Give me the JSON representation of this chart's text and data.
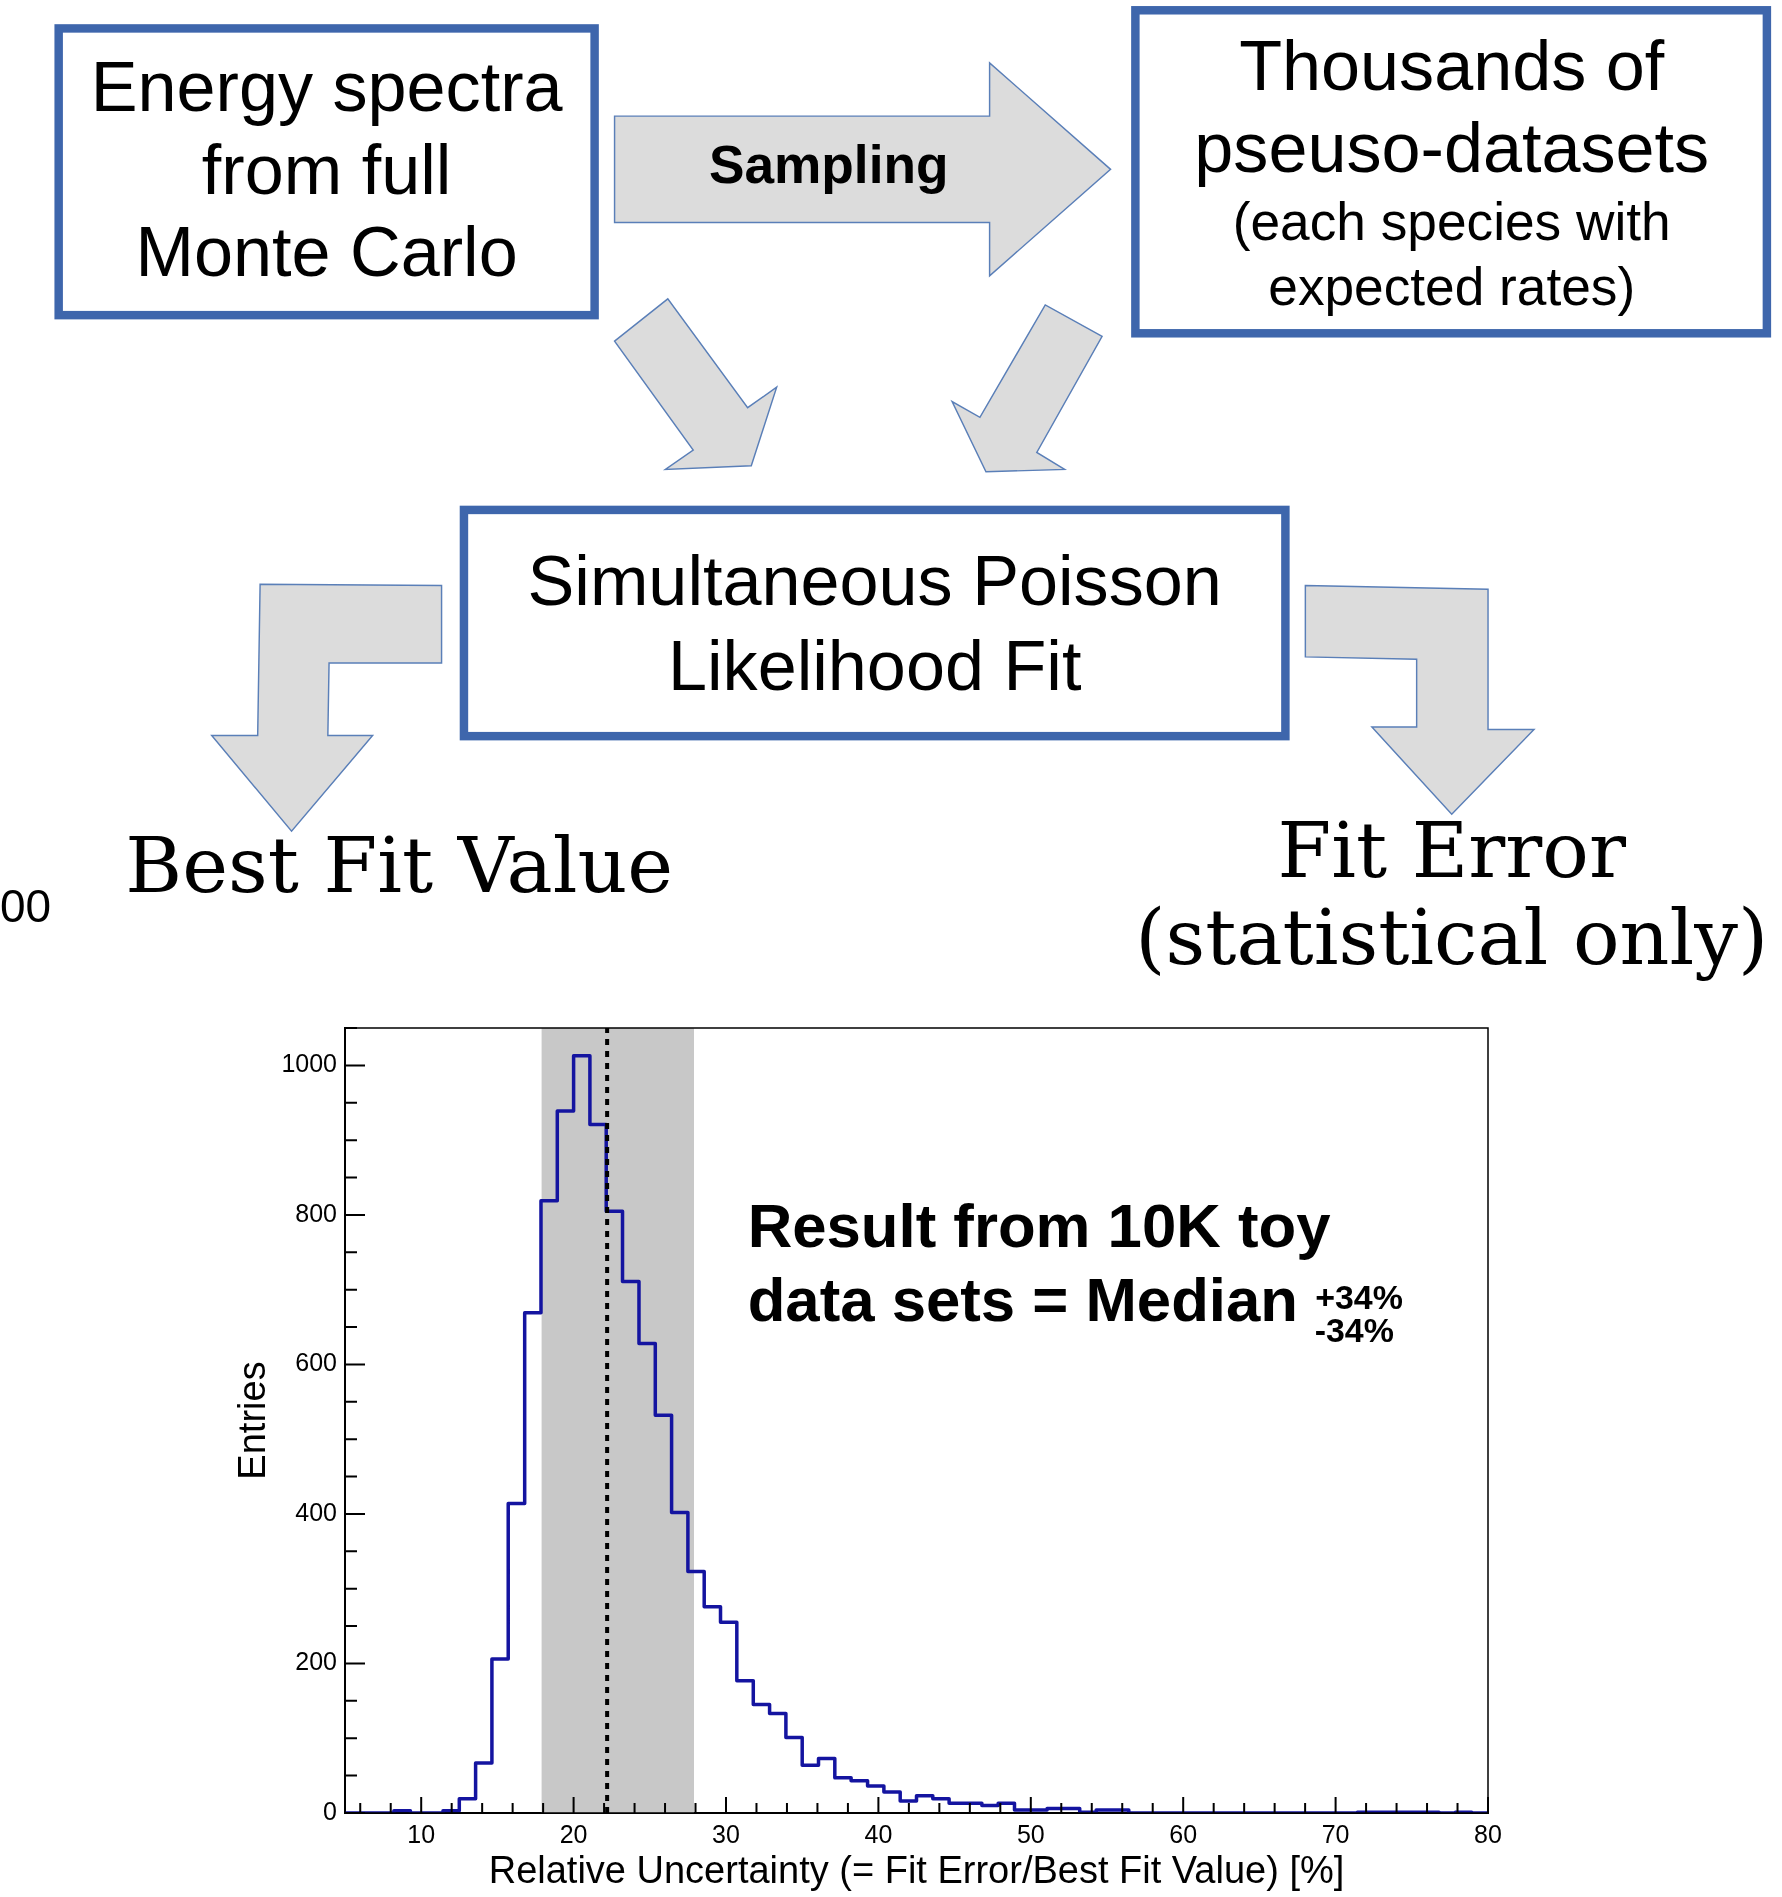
{
  "chart_data": {
    "type": "histogram",
    "xlabel": "Relative Uncertainty (= Fit Error/Best Fit Value) [%]",
    "ylabel": "Entries",
    "color": "#1414a0",
    "bins": [
      5,
      6.07,
      7.14,
      8.21,
      9.29,
      10.36,
      11.43,
      12.5,
      13.57,
      14.64,
      15.71,
      16.79,
      17.86,
      18.93,
      20,
      21.07,
      22.14,
      23.21,
      24.29,
      25.36,
      26.43,
      27.5,
      28.57,
      29.64,
      30.71,
      31.79,
      32.86,
      33.93,
      35,
      36.07,
      37.14,
      38.21,
      39.29,
      40.36,
      41.43,
      42.5,
      43.57,
      44.64,
      45.71,
      46.79,
      47.86,
      48.93,
      50,
      51.07,
      52.14,
      53.21,
      54.29,
      55.36,
      56.43,
      57.5,
      58.57,
      59.64,
      60.71,
      61.79,
      62.86,
      63.93,
      65,
      66.07,
      67.14,
      68.21,
      69.29,
      70.36,
      71.43,
      72.5,
      73.57,
      74.64,
      75.71,
      76.79,
      77.86,
      78.93,
      80
    ],
    "values": [
      0,
      0,
      0,
      3,
      0,
      0,
      3,
      19,
      67,
      206,
      414,
      669,
      819,
      939,
      1013,
      921,
      805,
      711,
      628,
      532,
      402,
      323,
      276,
      255,
      177,
      145,
      133,
      101,
      64,
      73,
      47,
      43,
      36,
      28,
      16,
      23,
      19,
      13,
      13,
      10,
      13,
      4,
      4,
      6,
      6,
      1,
      4,
      4,
      0,
      0,
      0,
      0,
      0,
      0,
      0,
      0,
      0,
      0,
      0,
      0,
      0,
      0,
      1,
      1,
      1,
      1,
      1,
      0,
      1,
      0
    ],
    "xlim": [
      5,
      80
    ],
    "ylim": [
      0,
      1050
    ],
    "xticks": [
      {
        "value": 6,
        "label": null
      },
      {
        "value": 8,
        "label": null
      },
      10,
      {
        "value": 12,
        "label": null
      },
      {
        "value": 14,
        "label": null
      },
      {
        "value": 16,
        "label": null
      },
      {
        "value": 18,
        "label": null
      },
      20,
      {
        "value": 22,
        "label": null
      },
      {
        "value": 24,
        "label": null
      },
      {
        "value": 26,
        "label": null
      },
      {
        "value": 28,
        "label": null
      },
      30,
      {
        "value": 32,
        "label": null
      },
      {
        "value": 34,
        "label": null
      },
      {
        "value": 36,
        "label": null
      },
      {
        "value": 38,
        "label": null
      },
      40,
      {
        "value": 42,
        "label": null
      },
      {
        "value": 44,
        "label": null
      },
      {
        "value": 46,
        "label": null
      },
      {
        "value": 48,
        "label": null
      },
      50,
      {
        "value": 52,
        "label": null
      },
      {
        "value": 54,
        "label": null
      },
      {
        "value": 56,
        "label": null
      },
      {
        "value": 58,
        "label": null
      },
      60,
      {
        "value": 62,
        "label": null
      },
      {
        "value": 64,
        "label": null
      },
      {
        "value": 66,
        "label": null
      },
      {
        "value": 68,
        "label": null
      },
      70,
      {
        "value": 72,
        "label": null
      },
      {
        "value": 74,
        "label": null
      },
      {
        "value": 76,
        "label": null
      },
      {
        "value": 78,
        "label": null
      },
      80
    ],
    "yticks": [
      0,
      {
        "value": 50,
        "label": null
      },
      {
        "value": 100,
        "label": null
      },
      {
        "value": 150,
        "label": null
      },
      200,
      {
        "value": 250,
        "label": null
      },
      {
        "value": 300,
        "label": null
      },
      {
        "value": 350,
        "label": null
      },
      400,
      {
        "value": 450,
        "label": null
      },
      {
        "value": 500,
        "label": null
      },
      {
        "value": 550,
        "label": null
      },
      600,
      {
        "value": 650,
        "label": null
      },
      {
        "value": 700,
        "label": null
      },
      {
        "value": 750,
        "label": null
      },
      800,
      {
        "value": 850,
        "label": null
      },
      {
        "value": 900,
        "label": null
      },
      {
        "value": 950,
        "label": null
      },
      1000,
      {
        "value": 1050,
        "label": null
      }
    ],
    "bands": [
      {
        "axis": "x",
        "from": 17.9,
        "to": 27.9,
        "color": "#c8c8c8"
      }
    ],
    "ref_lines": [
      {
        "axis": "x",
        "value": 22.2,
        "color": "#000000",
        "line_style": "dotted"
      }
    ],
    "annotations": [
      "Energy spectra\nfrom full\nMonte Carlo",
      "Sampling",
      "Thousands of\npseuso-datasets",
      "(each species with\nexpected rates)",
      "Simultaneous Poisson\nLikelihood Fit",
      "Best Fit Value",
      "Fit Error\n(statistical only)",
      "00",
      "Result from 10K toy\ndata sets = Median $^{+34%}$$_{-34%}$"
    ]
  }
}
